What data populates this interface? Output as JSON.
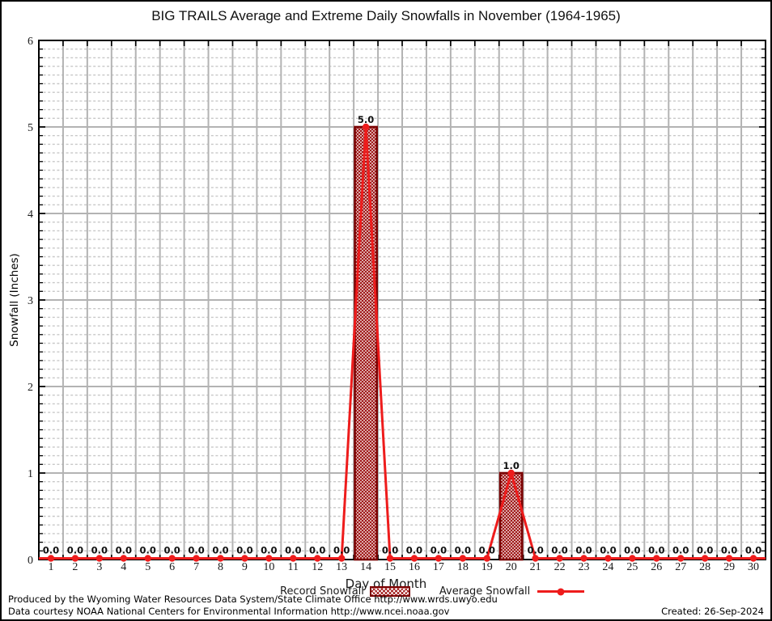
{
  "title": "BIG TRAILS Average and Extreme Daily Snowfalls in November (1964-1965)",
  "chart_data": {
    "type": "bar",
    "categories": [
      1,
      2,
      3,
      4,
      5,
      6,
      7,
      8,
      9,
      10,
      11,
      12,
      13,
      14,
      15,
      16,
      17,
      18,
      19,
      20,
      21,
      22,
      23,
      24,
      25,
      26,
      27,
      28,
      29,
      30
    ],
    "series": [
      {
        "name": "Record Snowfall",
        "type": "bar",
        "values": [
          0,
          0,
          0,
          0,
          0,
          0,
          0,
          0,
          0,
          0,
          0,
          0,
          0,
          5.0,
          0,
          0,
          0,
          0,
          0,
          1.0,
          0,
          0,
          0,
          0,
          0,
          0,
          0,
          0,
          0,
          0
        ]
      },
      {
        "name": "Average Snowfall",
        "type": "line",
        "values": [
          0,
          0,
          0,
          0,
          0,
          0,
          0,
          0,
          0,
          0,
          0,
          0,
          0,
          5.0,
          0,
          0,
          0,
          0,
          0,
          1.0,
          0,
          0,
          0,
          0,
          0,
          0,
          0,
          0,
          0,
          0
        ]
      }
    ],
    "point_labels": [
      "0.0",
      "0.0",
      "0.0",
      "0.0",
      "0.0",
      "0.0",
      "0.0",
      "0.0",
      "0.0",
      "0.0",
      "0.0",
      "0.0",
      "0.0",
      "5.0",
      "0.0",
      "0.0",
      "0.0",
      "0.0",
      "0.0",
      "1.0",
      "0.0",
      "0.0",
      "0.0",
      "0.0",
      "0.0",
      "0.0",
      "0.0",
      "0.0",
      "0.0",
      "0.0"
    ],
    "title": "BIG TRAILS Average and Extreme Daily Snowfalls in November (1964-1965)",
    "xlabel": "Day of Month",
    "ylabel": "Snowfall (Inches)",
    "ylim": [
      0,
      6
    ],
    "y_major_step": 1,
    "y_minor_step": 0.1,
    "grid": true,
    "legend_position": "bottom",
    "colors": {
      "record_border": "#7a0000",
      "record_hatch": "#9e1414",
      "average_line": "#ee1c1c",
      "grid_major": "#b3b3b3",
      "grid_minor": "#c8c8c8",
      "frame": "#000000",
      "label_text": "#111111"
    }
  },
  "legend": {
    "record_label": "Record Snowfall",
    "average_label": "Average Snowfall"
  },
  "footer": {
    "produced_by": "Produced by the Wyoming Water Resources Data System/State Climate Office http://www.wrds.uwyo.edu",
    "data_courtesy": "Data courtesy NOAA National Centers for Environmental Information http://www.ncei.noaa.gov",
    "created": "Created: 26-Sep-2024"
  }
}
